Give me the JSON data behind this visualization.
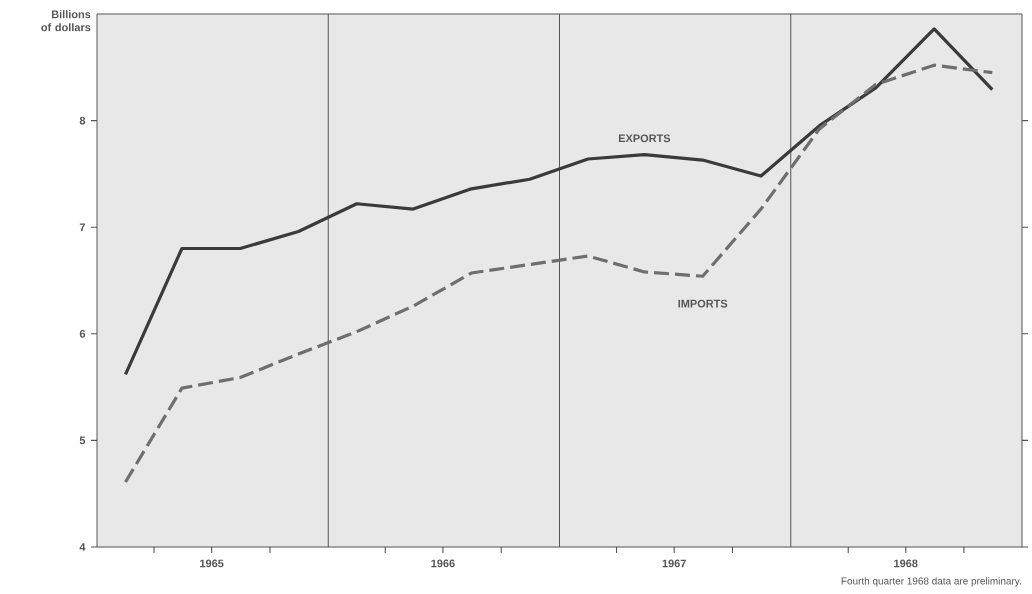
{
  "chart_data": {
    "type": "line",
    "ylabel": "Billions of dollars",
    "x": [
      "1965-02-15",
      "1965-05-15",
      "1965-08-15",
      "1965-11-15",
      "1966-02-15",
      "1966-05-15",
      "1966-08-15",
      "1966-11-15",
      "1967-02-15",
      "1967-05-15",
      "1967-08-15",
      "1967-11-15",
      "1968-02-15",
      "1968-05-15",
      "1968-08-15",
      "1968-11-15"
    ],
    "series": [
      {
        "name": "EXPORTS",
        "color": "#3a3a3a",
        "line_style": "solid",
        "values": [
          5.62,
          6.8,
          6.8,
          6.96,
          7.22,
          7.17,
          7.36,
          7.45,
          7.64,
          7.68,
          7.63,
          7.48,
          7.95,
          8.31,
          8.86,
          8.29
        ]
      },
      {
        "name": "IMPORTS",
        "color": "#6e6e6e",
        "line_style": "dashed",
        "values": [
          4.61,
          5.49,
          5.59,
          5.81,
          6.02,
          6.26,
          6.57,
          6.65,
          6.73,
          6.58,
          6.54,
          7.17,
          7.92,
          8.34,
          8.52,
          8.45
        ]
      }
    ],
    "xlim": [
      "1965",
      "1969"
    ],
    "ylim": [
      4,
      9
    ],
    "xticks": [
      {
        "value": "1965-04",
        "label": null
      },
      {
        "value": "1965-07",
        "label": "1965"
      },
      {
        "value": "1965-10",
        "label": null
      },
      {
        "value": "1966-04",
        "label": null
      },
      {
        "value": "1966-07",
        "label": "1966"
      },
      {
        "value": "1966-10",
        "label": null
      },
      {
        "value": "1967-04",
        "label": null
      },
      {
        "value": "1967-07",
        "label": "1967"
      },
      {
        "value": "1967-10",
        "label": null
      },
      {
        "value": "1968-04",
        "label": null
      },
      {
        "value": "1968-07",
        "label": "1968"
      },
      {
        "value": "1968-10",
        "label": null
      }
    ],
    "yticks": [
      4,
      5,
      6,
      7,
      8
    ],
    "ref_lines": [
      {
        "axis": "x",
        "value": "1966"
      },
      {
        "axis": "x",
        "value": "1967"
      },
      {
        "axis": "x",
        "value": "1968"
      }
    ],
    "marker": "none",
    "annotations": [
      "Fourth quarter 1968 data are preliminary."
    ]
  }
}
